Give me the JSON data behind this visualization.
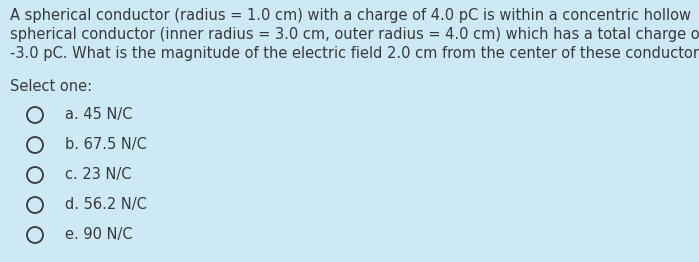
{
  "background_color": "#cce9f5",
  "text_color": "#3a3a3a",
  "question_lines": [
    "A spherical conductor (radius = 1.0 cm) with a charge of 4.0 pC is within a concentric hollow",
    "spherical conductor (inner radius = 3.0 cm, outer radius = 4.0 cm) which has a total charge of",
    "-3.0 pC. What is the magnitude of the electric field 2.0 cm from the center of these conductors?"
  ],
  "select_label": "Select one:",
  "options": [
    "a. 45 N/C",
    "b. 67.5 N/C",
    "c. 23 N/C",
    "d. 56.2 N/C",
    "e. 90 N/C"
  ],
  "font_size_question": 10.5,
  "font_size_options": 10.5,
  "font_size_select": 10.5,
  "figsize": [
    6.99,
    2.62
  ],
  "dpi": 100
}
